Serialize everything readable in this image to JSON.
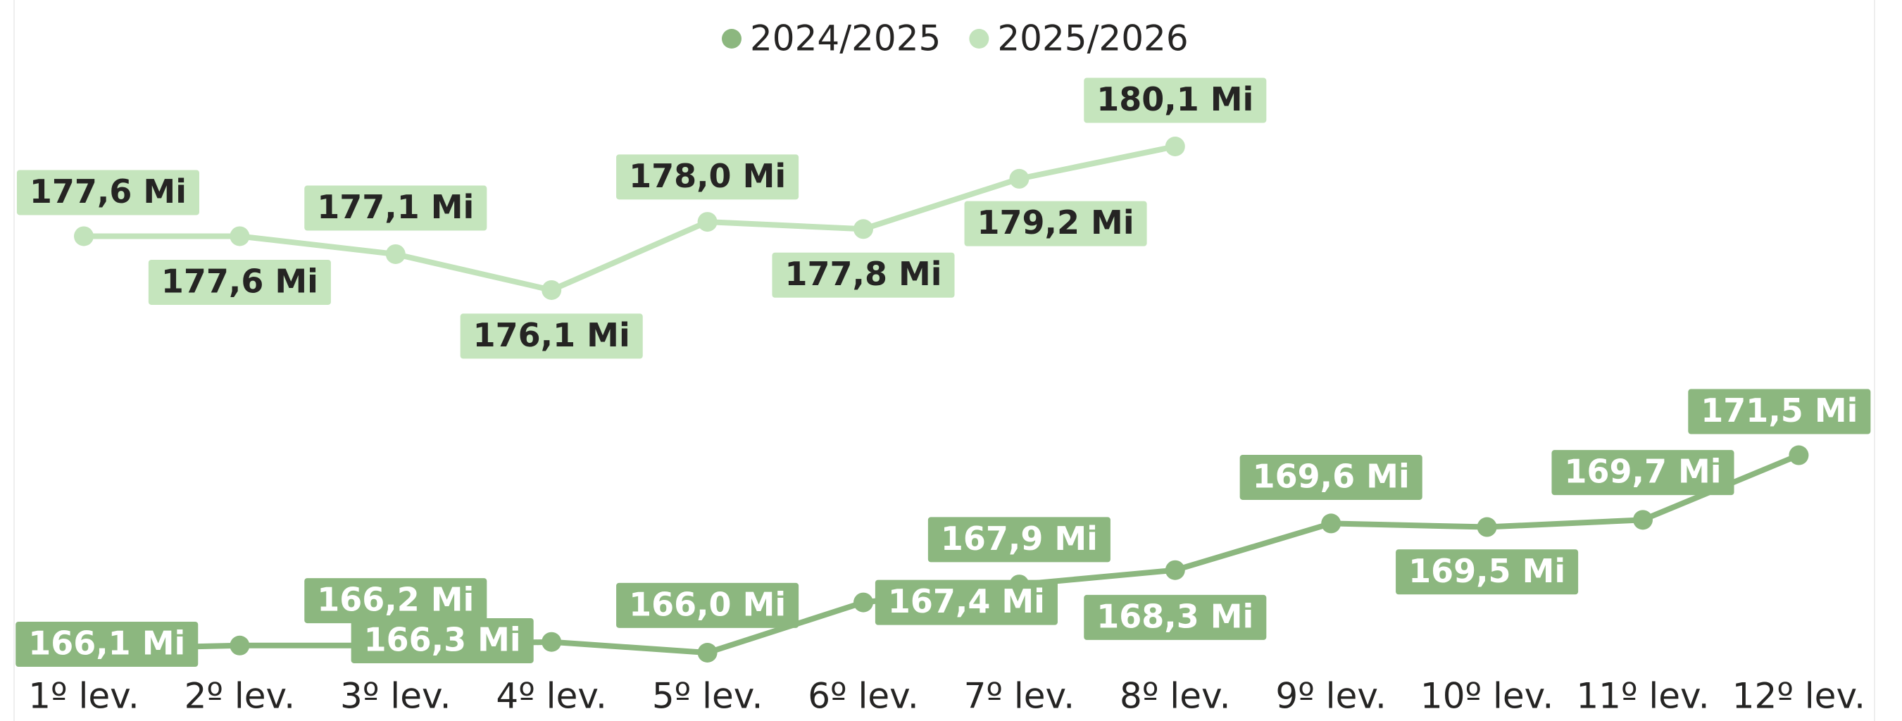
{
  "chart_data": {
    "type": "line",
    "categories": [
      "1º lev.",
      "2º lev.",
      "3º lev.",
      "4º lev.",
      "5º lev.",
      "6º lev.",
      "7º lev.",
      "8º lev.",
      "9º lev.",
      "10º lev.",
      "11º lev.",
      "12º lev."
    ],
    "series": [
      {
        "name": "2024/2025",
        "color": "#8cb77f",
        "values": [
          166.1,
          166.2,
          166.2,
          166.3,
          166.0,
          167.4,
          167.9,
          168.3,
          169.6,
          169.5,
          169.7,
          171.5
        ],
        "value_labels": [
          "166,1 Mi",
          null,
          "166,2 Mi",
          "166,3 Mi",
          "166,0 Mi",
          "167,4 Mi",
          "167,9 Mi",
          "168,3 Mi",
          "169,6 Mi",
          "169,5 Mi",
          "169,7 Mi",
          "171,5 Mi"
        ]
      },
      {
        "name": "2025/2026",
        "color": "#c2e3bb",
        "values": [
          177.6,
          177.6,
          177.1,
          176.1,
          178.0,
          177.8,
          179.2,
          180.1,
          null,
          null,
          null,
          null
        ],
        "value_labels": [
          "177,6 Mi",
          "177,6 Mi",
          "177,1 Mi",
          "176,1 Mi",
          "178,0 Mi",
          "177,8 Mi",
          "179,2 Mi",
          "180,1 Mi",
          null,
          null,
          null,
          null
        ]
      }
    ],
    "legend": "top"
  }
}
